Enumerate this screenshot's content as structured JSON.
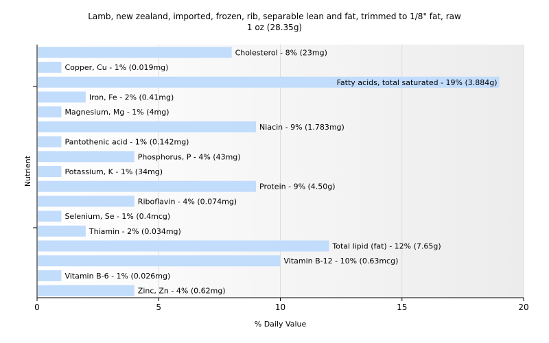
{
  "chart_data": {
    "type": "bar",
    "orientation": "horizontal",
    "title": "Lamb, new zealand, imported, frozen, rib, separable lean and fat, trimmed to 1/8\" fat, raw",
    "subtitle": "1 oz (28.35g)",
    "xlabel": "% Daily Value",
    "ylabel": "Nutrient",
    "xlim": [
      0,
      20
    ],
    "xticks": [
      0,
      5,
      10,
      15,
      20
    ],
    "grid": true,
    "bar_color": "#c2dcfc",
    "categories": [
      "Cholesterol",
      "Copper, Cu",
      "Fatty acids, total saturated",
      "Iron, Fe",
      "Magnesium, Mg",
      "Niacin",
      "Pantothenic acid",
      "Phosphorus, P",
      "Potassium, K",
      "Protein",
      "Riboflavin",
      "Selenium, Se",
      "Thiamin",
      "Total lipid (fat)",
      "Vitamin B-12",
      "Vitamin B-6",
      "Zinc, Zn"
    ],
    "values": [
      8,
      1,
      19,
      2,
      1,
      9,
      1,
      4,
      1,
      9,
      4,
      1,
      2,
      12,
      10,
      1,
      4
    ],
    "labels": [
      "Cholesterol - 8% (23mg)",
      "Copper, Cu - 1% (0.019mg)",
      "Fatty acids, total saturated - 19% (3.884g)",
      "Iron, Fe - 2% (0.41mg)",
      "Magnesium, Mg - 1% (4mg)",
      "Niacin - 9% (1.783mg)",
      "Pantothenic acid - 1% (0.142mg)",
      "Phosphorus, P - 4% (43mg)",
      "Potassium, K - 1% (34mg)",
      "Protein - 9% (4.50g)",
      "Riboflavin - 4% (0.074mg)",
      "Selenium, Se - 1% (0.4mcg)",
      "Thiamin - 2% (0.034mg)",
      "Total lipid (fat) - 12% (7.65g)",
      "Vitamin B-12 - 10% (0.63mcg)",
      "Vitamin B-6 - 1% (0.026mg)",
      "Zinc, Zn - 4% (0.62mg)"
    ]
  }
}
